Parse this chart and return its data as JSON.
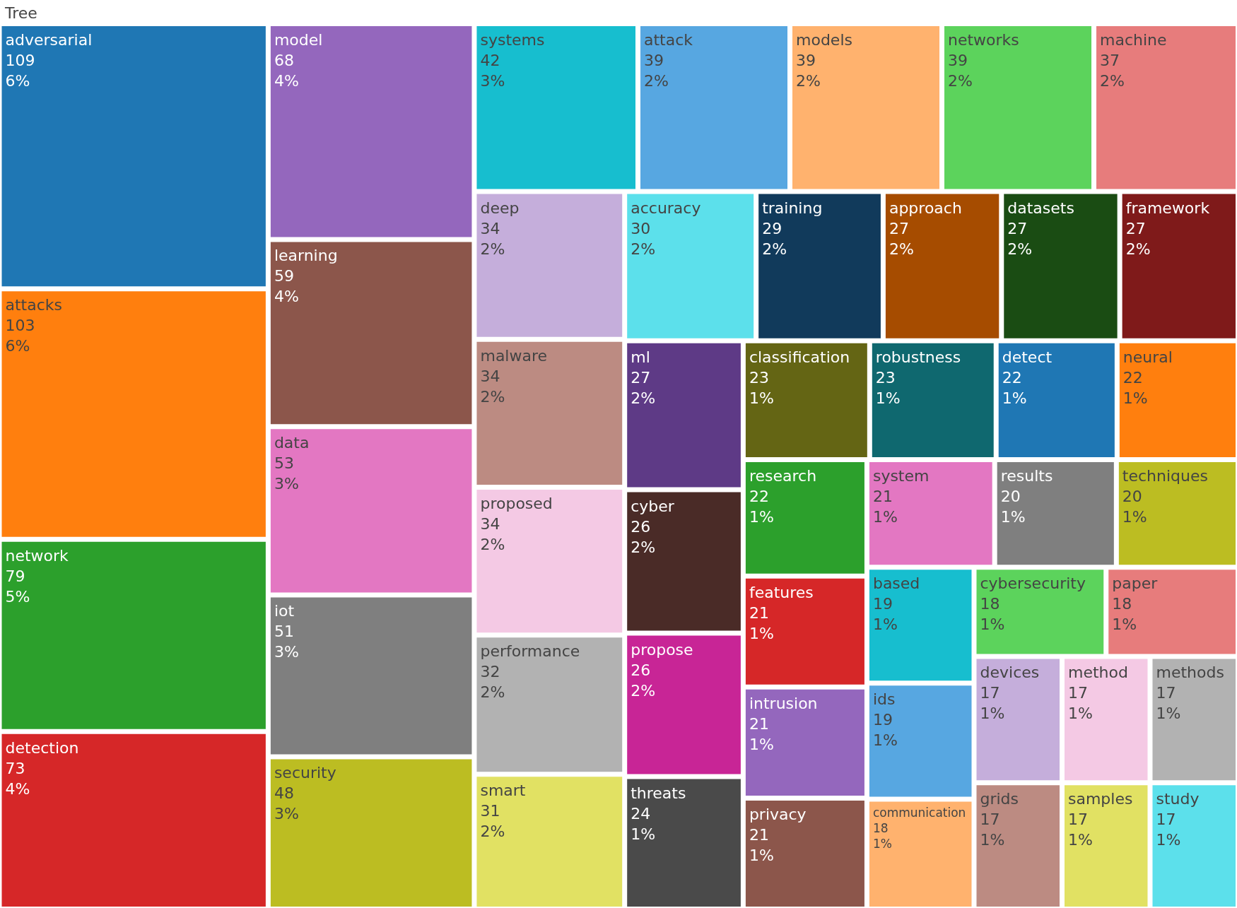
{
  "chart_data": {
    "type": "other",
    "title": "Tree",
    "categories": [
      "adversarial",
      "attacks",
      "network",
      "detection",
      "model",
      "learning",
      "data",
      "iot",
      "security",
      "systems",
      "attack",
      "models",
      "networks",
      "machine",
      "deep",
      "malware",
      "proposed",
      "performance",
      "smart",
      "accuracy",
      "training",
      "approach",
      "datasets",
      "framework",
      "ml",
      "cyber",
      "propose",
      "threats",
      "classification",
      "robustness",
      "detect",
      "neural",
      "research",
      "features",
      "intrusion",
      "privacy",
      "system",
      "results",
      "techniques",
      "based",
      "ids",
      "communication",
      "cybersecurity",
      "paper",
      "devices",
      "grids",
      "method",
      "methods",
      "samples",
      "study"
    ],
    "values": [
      109,
      103,
      79,
      73,
      68,
      59,
      53,
      51,
      48,
      42,
      39,
      39,
      39,
      37,
      34,
      34,
      34,
      32,
      31,
      30,
      29,
      27,
      27,
      27,
      27,
      26,
      26,
      24,
      23,
      23,
      22,
      22,
      22,
      21,
      21,
      21,
      21,
      20,
      20,
      19,
      19,
      18,
      18,
      18,
      17,
      17,
      17,
      17,
      17,
      17
    ],
    "value_labels": [
      "109\n6%",
      "103\n6%",
      "79\n5%",
      "73\n4%",
      "68\n4%",
      "59\n4%",
      "53\n3%",
      "51\n3%",
      "48\n3%",
      "42\n3%",
      "39\n2%",
      "39\n2%",
      "39\n2%",
      "37\n2%",
      "34\n2%",
      "34\n2%",
      "34\n2%",
      "32\n2%",
      "31\n2%",
      "30\n2%",
      "29\n2%",
      "27\n2%",
      "27\n2%",
      "27\n2%",
      "27\n2%",
      "26\n2%",
      "26\n2%",
      "24\n1%",
      "23\n1%",
      "23\n1%",
      "22\n1%",
      "22\n1%",
      "22\n1%",
      "21\n1%",
      "21\n1%",
      "21\n1%",
      "21\n1%",
      "20\n1%",
      "20\n1%",
      "19\n1%",
      "19\n1%",
      "18\n1%",
      "18\n1%",
      "18\n1%",
      "17\n1%",
      "17\n1%",
      "17\n1%",
      "17\n1%",
      "17\n1%",
      "17\n1%"
    ],
    "colors": [
      "#1f77b4",
      "#ff7f0e",
      "#2ca02c",
      "#d62728",
      "#9467bd",
      "#8c564b",
      "#e377c2",
      "#7f7f7f",
      "#bcbd22",
      "#17becf",
      "#57a7e1",
      "#ffb26e",
      "#5cd35c",
      "#e77c7c",
      "#c5aedb",
      "#bc8b82",
      "#f4c9e4",
      "#b2b2b2",
      "#e1e163",
      "#5ce0eb",
      "#113a5b",
      "#a64c00",
      "#1a4c13",
      "#7f1a1a",
      "#5e3a86",
      "#4a2b27",
      "#c82596",
      "#4a4a4a",
      "#646514",
      "#0f686f",
      "#1f77b4",
      "#ff7f0e",
      "#2ca02c",
      "#d62728",
      "#9467bd",
      "#8c564b",
      "#e377c2",
      "#7f7f7f",
      "#bcbd22",
      "#17becf",
      "#57a7e1",
      "#ffb26e",
      "#5cd35c",
      "#e77c7c",
      "#c5aedb",
      "#bc8b82",
      "#f4c9e4",
      "#b2b2b2",
      "#e1e163",
      "#5ce0eb"
    ]
  }
}
